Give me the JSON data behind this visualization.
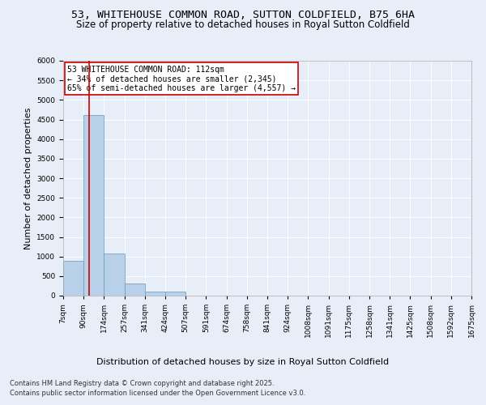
{
  "title": "53, WHITEHOUSE COMMON ROAD, SUTTON COLDFIELD, B75 6HA",
  "subtitle": "Size of property relative to detached houses in Royal Sutton Coldfield",
  "xlabel": "Distribution of detached houses by size in Royal Sutton Coldfield",
  "ylabel": "Number of detached properties",
  "footer_line1": "Contains HM Land Registry data © Crown copyright and database right 2025.",
  "footer_line2": "Contains public sector information licensed under the Open Government Licence v3.0.",
  "annotation_line1": "53 WHITEHOUSE COMMON ROAD: 112sqm",
  "annotation_line2": "← 34% of detached houses are smaller (2,345)",
  "annotation_line3": "65% of semi-detached houses are larger (4,557) →",
  "bar_values": [
    900,
    4620,
    1075,
    305,
    100,
    100,
    0,
    0,
    0,
    0,
    0,
    0,
    0,
    0,
    0,
    0,
    0,
    0,
    0,
    0
  ],
  "bin_labels": [
    "7sqm",
    "90sqm",
    "174sqm",
    "257sqm",
    "341sqm",
    "424sqm",
    "507sqm",
    "591sqm",
    "674sqm",
    "758sqm",
    "841sqm",
    "924sqm",
    "1008sqm",
    "1091sqm",
    "1175sqm",
    "1258sqm",
    "1341sqm",
    "1425sqm",
    "1508sqm",
    "1592sqm",
    "1675sqm"
  ],
  "bar_color": "#b8d0e8",
  "bar_edge_color": "#6699bb",
  "background_color": "#e8eef8",
  "plot_bg_color": "#e8eef8",
  "ylim": [
    0,
    6000
  ],
  "yticks": [
    0,
    500,
    1000,
    1500,
    2000,
    2500,
    3000,
    3500,
    4000,
    4500,
    5000,
    5500,
    6000
  ],
  "red_line_color": "#cc0000",
  "annotation_box_color": "#cc0000",
  "title_fontsize": 9.5,
  "subtitle_fontsize": 8.5,
  "tick_fontsize": 6.5,
  "ylabel_fontsize": 8,
  "xlabel_fontsize": 8,
  "annotation_fontsize": 7,
  "footer_fontsize": 6
}
